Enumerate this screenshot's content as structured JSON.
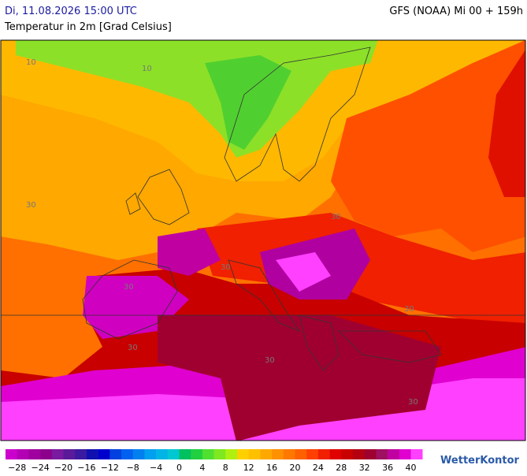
{
  "header": {
    "date": "Di, 11.08.2026 15:00 UTC",
    "model": "GFS (NOAA) Mi 00 + 159h",
    "subtitle": "Temperatur in 2m [Grad Celsius]"
  },
  "map": {
    "contour_labels": [
      "10",
      "10",
      "30",
      "30",
      "30",
      "30",
      "30",
      "30",
      "30",
      "30"
    ]
  },
  "legend": {
    "colors": [
      "#cc00cc",
      "#b400b4",
      "#a000a0",
      "#8c008c",
      "#7a1aa0",
      "#5a1a9a",
      "#3a1aa0",
      "#1010b0",
      "#0000cc",
      "#0040e0",
      "#0060f0",
      "#0080f0",
      "#00a0f0",
      "#00b4e6",
      "#00c8d2",
      "#00c060",
      "#20d040",
      "#50e030",
      "#80e820",
      "#b0f010",
      "#ffd000",
      "#ffc000",
      "#ffa800",
      "#ff9000",
      "#ff7800",
      "#ff6000",
      "#ff4000",
      "#f02000",
      "#e00000",
      "#c80000",
      "#b40010",
      "#a00030",
      "#a01060",
      "#c000a0",
      "#e000d0",
      "#ff40ff"
    ],
    "ticks": [
      "−28",
      "−24",
      "−20",
      "−16",
      "−12",
      "−8",
      "−4",
      "0",
      "4",
      "8",
      "12",
      "16",
      "20",
      "24",
      "28",
      "32",
      "36",
      "40"
    ]
  },
  "logo": "WetterKontor"
}
